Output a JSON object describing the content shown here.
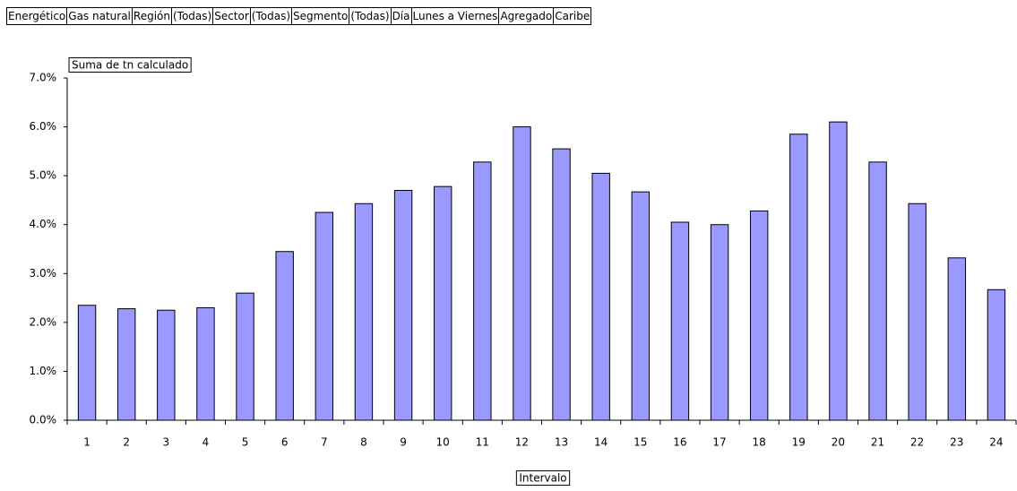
{
  "filters": [
    {
      "label": "Energético",
      "value": "Gas natural"
    },
    {
      "label": "Región",
      "value": "(Todas)"
    },
    {
      "label": "Sector",
      "value": "(Todas)"
    },
    {
      "label": "Segmento",
      "value": "(Todas)"
    },
    {
      "label": "Día",
      "value": "Lunes a Viernes"
    },
    {
      "label": "Agregado",
      "value": "Caribe"
    }
  ],
  "chart_data": {
    "type": "bar",
    "x_label": "Intervalo",
    "categories": [
      "1",
      "2",
      "3",
      "4",
      "5",
      "6",
      "7",
      "8",
      "9",
      "10",
      "11",
      "12",
      "13",
      "14",
      "15",
      "16",
      "17",
      "18",
      "19",
      "20",
      "21",
      "22",
      "23",
      "24"
    ],
    "series": [
      {
        "name": "Suma de tn calculado",
        "color": "#9999ff",
        "values": [
          2.35,
          2.28,
          2.25,
          2.3,
          2.6,
          3.45,
          4.25,
          4.43,
          4.7,
          4.78,
          5.28,
          6.0,
          5.55,
          5.05,
          4.67,
          4.05,
          4.0,
          4.28,
          5.85,
          6.1,
          5.28,
          4.43,
          3.32,
          2.67
        ]
      }
    ],
    "ylim": [
      0,
      7
    ],
    "yticks": [
      {
        "value": 0,
        "label": "0.0%"
      },
      {
        "value": 1,
        "label": "1.0%"
      },
      {
        "value": 2,
        "label": "2.0%"
      },
      {
        "value": 3,
        "label": "3.0%"
      },
      {
        "value": 4,
        "label": "4.0%"
      },
      {
        "value": 5,
        "label": "5.0%"
      },
      {
        "value": 6,
        "label": "6.0%"
      },
      {
        "value": 7,
        "label": "7.0%"
      }
    ],
    "grid": false
  }
}
